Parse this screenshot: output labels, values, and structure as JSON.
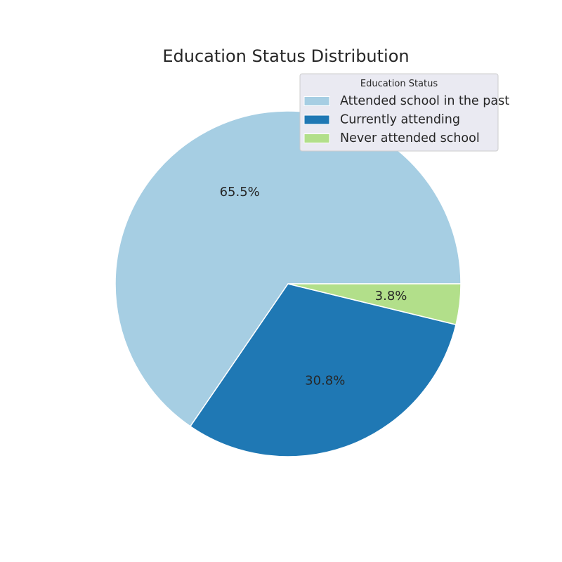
{
  "chart_data": {
    "type": "pie",
    "title": "Education Status Distribution",
    "legend": {
      "title": "Education Status",
      "placement": "top-right"
    },
    "start_angle_deg": 0,
    "direction": "counterclockwise",
    "slices": [
      {
        "label": "Attended school in the past",
        "value": 65.5,
        "pct_label": "65.5%",
        "color": "#a6cee3"
      },
      {
        "label": "Currently attending",
        "value": 30.8,
        "pct_label": "30.8%",
        "color": "#1f78b4"
      },
      {
        "label": "Never attended school",
        "value": 3.8,
        "pct_label": "3.8%",
        "color": "#b2df8a"
      }
    ]
  },
  "colors": {
    "background": "#ffffff",
    "legend_background": "#eaeaf2",
    "legend_border": "#cccccc",
    "text": "#262626",
    "slice_edge": "#ffffff"
  }
}
